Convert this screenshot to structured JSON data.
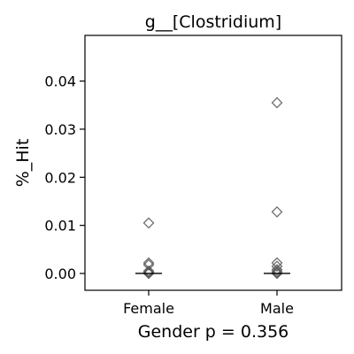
{
  "chart_data": {
    "type": "scatter",
    "title": "g__[Clostridium]",
    "ylabel": "%_Hit",
    "xlabel": "Gender p = 0.356",
    "categories": [
      "Female",
      "Male"
    ],
    "ylim": [
      -0.0035,
      0.0495
    ],
    "yticks": [
      0.0,
      0.01,
      0.02,
      0.03,
      0.04
    ],
    "ytick_labels": [
      "0.00",
      "0.01",
      "0.02",
      "0.03",
      "0.04"
    ],
    "grid": false,
    "marker": "diamond-open",
    "marker_color": "#555555",
    "median_color": "#000000",
    "groups": [
      {
        "category": "Female",
        "values": [
          0.0105,
          0.0022,
          0.0018,
          0.0005,
          0.0002,
          0.0001,
          0.0
        ],
        "median": 0.0
      },
      {
        "category": "Male",
        "values": [
          0.0355,
          0.0128,
          0.0022,
          0.0015,
          0.0008,
          0.0004,
          0.0001,
          0.0
        ],
        "median": 0.0
      }
    ]
  }
}
